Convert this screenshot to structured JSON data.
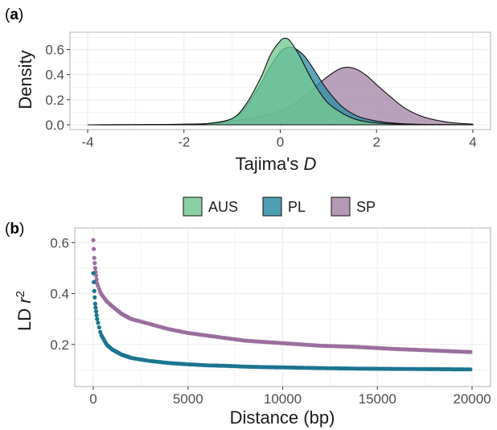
{
  "panels": {
    "a_label_open": "(",
    "a_label_letter": "a",
    "a_label_close": ")",
    "b_label_open": "(",
    "b_label_letter": "b",
    "b_label_close": ")"
  },
  "colors": {
    "AUS": "#74c993",
    "PL": "#2f8ea3",
    "SP": "#a687a8",
    "PL_points": "#1a7590",
    "SP_points": "#9b6d9e",
    "grid": "#ebebeb",
    "panel_border": "#b3b3b3"
  },
  "chart_data": [
    {
      "type": "area",
      "panel": "a",
      "xlabel_main": "Tajima's ",
      "xlabel_italic": "D",
      "ylabel": "Density",
      "xlim": [
        -4,
        4
      ],
      "ylim": [
        0,
        0.7
      ],
      "x_ticks": [
        -4,
        -2,
        0,
        2,
        4
      ],
      "x_tick_labels": [
        "-4",
        "-2",
        "0",
        "2",
        "4"
      ],
      "y_ticks": [
        0.0,
        0.2,
        0.4,
        0.6
      ],
      "y_tick_labels": [
        "0.0",
        "0.2",
        "0.4",
        "0.6"
      ],
      "grid": true,
      "legend_position": "bottom",
      "legend": [
        "AUS",
        "PL",
        "SP"
      ],
      "series": [
        {
          "name": "SP",
          "x": [
            -4,
            -3,
            -2,
            -1.5,
            -1,
            -0.5,
            0,
            0.3,
            0.6,
            0.9,
            1.2,
            1.4,
            1.6,
            1.8,
            2.0,
            2.3,
            2.6,
            3.0,
            3.5,
            4.0
          ],
          "y": [
            0.0,
            0.0,
            0.005,
            0.01,
            0.03,
            0.06,
            0.11,
            0.17,
            0.26,
            0.36,
            0.44,
            0.46,
            0.44,
            0.39,
            0.32,
            0.22,
            0.13,
            0.06,
            0.02,
            0.005
          ]
        },
        {
          "name": "PL",
          "x": [
            -4,
            -2,
            -1.5,
            -1,
            -0.7,
            -0.4,
            -0.2,
            0.0,
            0.1,
            0.2,
            0.3,
            0.5,
            0.7,
            0.9,
            1.1,
            1.3,
            1.6,
            2.0,
            2.5,
            3.0,
            4.0
          ],
          "y": [
            0.0,
            0.003,
            0.01,
            0.05,
            0.15,
            0.33,
            0.47,
            0.58,
            0.61,
            0.62,
            0.61,
            0.55,
            0.44,
            0.32,
            0.22,
            0.14,
            0.07,
            0.03,
            0.01,
            0.003,
            0.0
          ]
        },
        {
          "name": "AUS",
          "x": [
            -4,
            -2,
            -1.5,
            -1,
            -0.7,
            -0.4,
            -0.2,
            0.0,
            0.1,
            0.2,
            0.4,
            0.6,
            0.8,
            1.0,
            1.3,
            1.6,
            2.0,
            2.5,
            3.0,
            4.0
          ],
          "y": [
            0.0,
            0.003,
            0.01,
            0.05,
            0.17,
            0.38,
            0.56,
            0.67,
            0.69,
            0.67,
            0.55,
            0.4,
            0.27,
            0.17,
            0.09,
            0.04,
            0.015,
            0.005,
            0.002,
            0.0
          ]
        }
      ]
    },
    {
      "type": "scatter",
      "panel": "b",
      "xlabel": "Distance (bp)",
      "ylabel_main": "LD ",
      "ylabel_italic": "r",
      "ylabel_sup": "2",
      "xlim": [
        0,
        20000
      ],
      "ylim": [
        0.06,
        0.62
      ],
      "x_ticks": [
        0,
        5000,
        10000,
        15000,
        20000
      ],
      "x_tick_labels": [
        "0",
        "5000",
        "10000",
        "15000",
        "20000"
      ],
      "y_ticks": [
        0.2,
        0.4,
        0.6
      ],
      "y_tick_labels": [
        "0.2",
        "0.4",
        "0.6"
      ],
      "grid": true,
      "series": [
        {
          "name": "SP",
          "x": [
            0,
            50,
            100,
            200,
            400,
            700,
            1000,
            1500,
            2000,
            3000,
            4000,
            5000,
            6000,
            7000,
            8000,
            9000,
            10000,
            12000,
            14000,
            16000,
            18000,
            20000
          ],
          "y": [
            0.61,
            0.54,
            0.5,
            0.44,
            0.4,
            0.37,
            0.35,
            0.32,
            0.3,
            0.28,
            0.26,
            0.245,
            0.235,
            0.225,
            0.215,
            0.21,
            0.205,
            0.195,
            0.19,
            0.182,
            0.176,
            0.17
          ]
        },
        {
          "name": "PL",
          "x": [
            0,
            50,
            100,
            200,
            400,
            700,
            1000,
            1500,
            2000,
            3000,
            4000,
            5000,
            6000,
            7000,
            8000,
            9000,
            10000,
            12000,
            14000,
            16000,
            18000,
            20000
          ],
          "y": [
            0.48,
            0.41,
            0.36,
            0.3,
            0.24,
            0.2,
            0.18,
            0.16,
            0.147,
            0.135,
            0.127,
            0.122,
            0.118,
            0.116,
            0.113,
            0.111,
            0.11,
            0.107,
            0.105,
            0.104,
            0.103,
            0.102
          ]
        }
      ]
    }
  ]
}
